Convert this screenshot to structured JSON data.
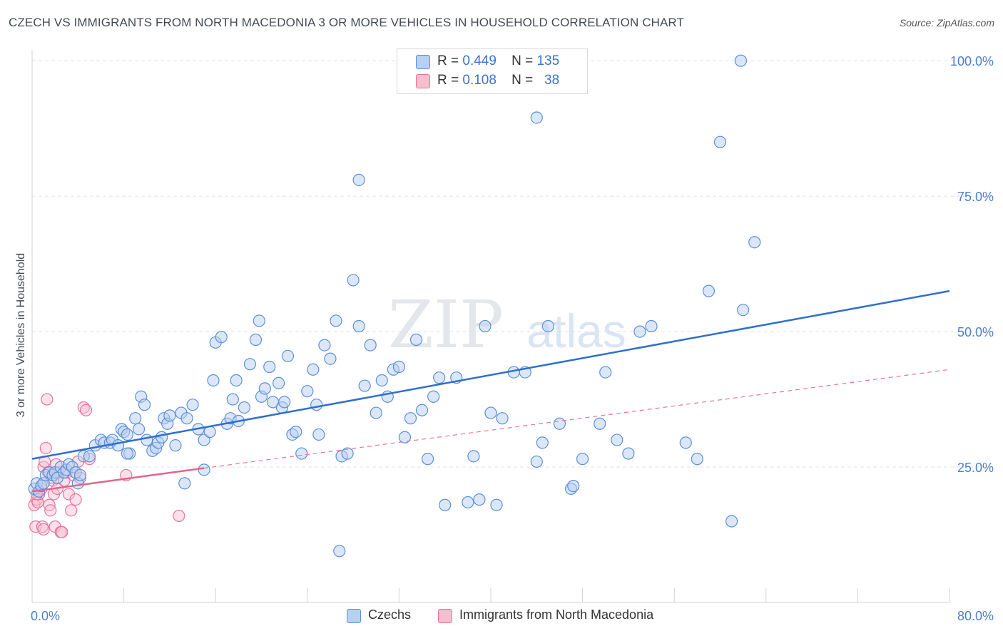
{
  "title": "CZECH VS IMMIGRANTS FROM NORTH MACEDONIA 3 OR MORE VEHICLES IN HOUSEHOLD CORRELATION CHART",
  "source": "Source: ZipAtlas.com",
  "watermark": {
    "zip": "ZIP",
    "atlas": "atlas"
  },
  "legend": {
    "czechs": {
      "r_label": "R =",
      "r_value": "0.449",
      "n_label": "N =",
      "n_value": "135"
    },
    "macedonia": {
      "r_label": "R =",
      "r_value": "0.108",
      "n_label": "N =",
      "n_value": "38"
    }
  },
  "colors": {
    "czechs": "#5b8fd9",
    "czechs_fill": "#b8d0f2",
    "macedonia": "#e8739a",
    "macedonia_fill": "#f6bfd0"
  },
  "chart_data": {
    "type": "scatter",
    "ylabel": "3 or more Vehicles in Household",
    "xlabel": "",
    "xlim": [
      0,
      80
    ],
    "ylim": [
      0,
      102
    ],
    "x_tick_labels": [
      "0.0%",
      "80.0%"
    ],
    "y_ticks": [
      25,
      50,
      75,
      100
    ],
    "y_tick_labels": [
      "25.0%",
      "50.0%",
      "75.0%",
      "100.0%"
    ],
    "series": [
      {
        "name": "Czechs",
        "trend": {
          "x0": 0,
          "y0": 26.5,
          "x1": 80,
          "y1": 57.5,
          "style": "solid"
        },
        "points": [
          [
            0.2,
            21
          ],
          [
            0.4,
            22
          ],
          [
            0.6,
            20.5
          ],
          [
            0.8,
            21.5
          ],
          [
            1.0,
            22
          ],
          [
            1.2,
            23.5
          ],
          [
            1.5,
            24
          ],
          [
            1.8,
            23.5
          ],
          [
            2.0,
            24
          ],
          [
            2.2,
            23
          ],
          [
            2.5,
            25
          ],
          [
            2.8,
            24
          ],
          [
            3.0,
            24.5
          ],
          [
            3.2,
            25.5
          ],
          [
            3.5,
            25
          ],
          [
            3.8,
            24
          ],
          [
            4.0,
            22
          ],
          [
            4.2,
            23.5
          ],
          [
            4.5,
            27
          ],
          [
            5.0,
            27
          ],
          [
            5.5,
            29
          ],
          [
            6.0,
            30
          ],
          [
            6.3,
            29.5
          ],
          [
            6.8,
            29.5
          ],
          [
            7.0,
            30
          ],
          [
            7.5,
            29
          ],
          [
            7.8,
            32
          ],
          [
            8.0,
            31.5
          ],
          [
            8.3,
            31
          ],
          [
            8.5,
            27.5
          ],
          [
            9.0,
            34
          ],
          [
            9.3,
            32
          ],
          [
            9.5,
            38
          ],
          [
            9.8,
            36.5
          ],
          [
            10.0,
            30
          ],
          [
            10.5,
            28
          ],
          [
            10.8,
            28.5
          ],
          [
            11.0,
            29.5
          ],
          [
            11.3,
            30.5
          ],
          [
            11.5,
            34
          ],
          [
            11.8,
            33
          ],
          [
            12.0,
            34.5
          ],
          [
            12.5,
            29
          ],
          [
            13.0,
            35
          ],
          [
            13.5,
            34
          ],
          [
            14.0,
            36.5
          ],
          [
            14.5,
            32
          ],
          [
            15.0,
            30
          ],
          [
            15.5,
            31.5
          ],
          [
            15.8,
            41
          ],
          [
            16.0,
            48
          ],
          [
            16.5,
            49
          ],
          [
            17.0,
            33
          ],
          [
            17.3,
            34
          ],
          [
            17.5,
            37.5
          ],
          [
            17.8,
            41
          ],
          [
            18.0,
            33.5
          ],
          [
            18.5,
            36
          ],
          [
            19.0,
            44
          ],
          [
            19.5,
            48.5
          ],
          [
            19.8,
            52
          ],
          [
            20.0,
            38
          ],
          [
            20.3,
            39.5
          ],
          [
            20.7,
            43.5
          ],
          [
            21.0,
            37
          ],
          [
            21.5,
            40.5
          ],
          [
            21.8,
            36
          ],
          [
            22.0,
            37
          ],
          [
            22.3,
            45.5
          ],
          [
            22.7,
            31
          ],
          [
            23.0,
            31.5
          ],
          [
            23.5,
            27.5
          ],
          [
            24.0,
            39
          ],
          [
            24.5,
            43
          ],
          [
            24.8,
            36.5
          ],
          [
            25.0,
            31
          ],
          [
            25.5,
            47.5
          ],
          [
            26.0,
            45
          ],
          [
            26.5,
            52
          ],
          [
            27.0,
            27
          ],
          [
            27.5,
            27.5
          ],
          [
            28.0,
            59.5
          ],
          [
            28.5,
            51
          ],
          [
            29.0,
            40
          ],
          [
            29.5,
            47.5
          ],
          [
            30.0,
            35
          ],
          [
            30.5,
            41
          ],
          [
            31.0,
            38
          ],
          [
            31.5,
            43
          ],
          [
            32.0,
            43.5
          ],
          [
            32.5,
            30.5
          ],
          [
            33.0,
            34
          ],
          [
            33.5,
            48.5
          ],
          [
            34.0,
            35.5
          ],
          [
            34.5,
            26.5
          ],
          [
            35.0,
            38
          ],
          [
            35.5,
            41.5
          ],
          [
            36.0,
            18
          ],
          [
            37.0,
            41.5
          ],
          [
            38.0,
            18.5
          ],
          [
            38.5,
            27
          ],
          [
            39.0,
            19
          ],
          [
            39.5,
            51
          ],
          [
            40.0,
            35
          ],
          [
            40.5,
            18
          ],
          [
            41.0,
            34
          ],
          [
            42.0,
            42.5
          ],
          [
            43.0,
            42.5
          ],
          [
            44.0,
            26
          ],
          [
            44.5,
            29.5
          ],
          [
            45.0,
            51
          ],
          [
            46.0,
            33
          ],
          [
            47.0,
            21
          ],
          [
            47.2,
            21.5
          ],
          [
            48.0,
            26.5
          ],
          [
            49.5,
            33
          ],
          [
            50.0,
            42.5
          ],
          [
            51.0,
            30
          ],
          [
            52.0,
            27.5
          ],
          [
            53.0,
            50
          ],
          [
            54.0,
            51
          ],
          [
            57.0,
            29.5
          ],
          [
            58.0,
            26.5
          ],
          [
            59.0,
            57.5
          ],
          [
            60.0,
            85
          ],
          [
            61.0,
            15
          ],
          [
            62.0,
            54
          ],
          [
            63.0,
            66.5
          ],
          [
            44.0,
            89.5
          ],
          [
            28.5,
            78
          ],
          [
            26.8,
            9.5
          ],
          [
            61.8,
            100
          ],
          [
            15.0,
            24.5
          ],
          [
            13.3,
            22
          ],
          [
            8.3,
            27.5
          ]
        ]
      },
      {
        "name": "Immigrants from North Macedonia",
        "trend": {
          "x0": 0,
          "y0": 20.5,
          "x1": 15,
          "y1": 24.8,
          "style": "solid",
          "extension": {
            "x1": 80,
            "y1": 43
          }
        },
        "points": [
          [
            0.2,
            18
          ],
          [
            0.3,
            14
          ],
          [
            0.4,
            19
          ],
          [
            0.5,
            18.5
          ],
          [
            0.6,
            20
          ],
          [
            0.8,
            21
          ],
          [
            0.9,
            14
          ],
          [
            1.0,
            25
          ],
          [
            1.1,
            26
          ],
          [
            1.2,
            28.5
          ],
          [
            1.3,
            37.5
          ],
          [
            1.4,
            24
          ],
          [
            1.5,
            18
          ],
          [
            1.6,
            17
          ],
          [
            1.7,
            23
          ],
          [
            1.8,
            22.5
          ],
          [
            1.9,
            20
          ],
          [
            2.0,
            14
          ],
          [
            2.1,
            25.5
          ],
          [
            2.2,
            21
          ],
          [
            2.3,
            24
          ],
          [
            2.5,
            13
          ],
          [
            2.6,
            13
          ],
          [
            2.8,
            22.5
          ],
          [
            3.0,
            24
          ],
          [
            3.2,
            20
          ],
          [
            3.4,
            17
          ],
          [
            3.6,
            23.5
          ],
          [
            3.8,
            19
          ],
          [
            4.0,
            26
          ],
          [
            4.2,
            23
          ],
          [
            4.5,
            36
          ],
          [
            4.7,
            35.5
          ],
          [
            5.0,
            26.5
          ],
          [
            8.2,
            23.5
          ],
          [
            12.8,
            16
          ],
          [
            1.0,
            13.5
          ],
          [
            0.4,
            20
          ]
        ]
      }
    ]
  },
  "bottom_legend": {
    "czechs": "Czechs",
    "macedonia": "Immigrants from North Macedonia"
  }
}
